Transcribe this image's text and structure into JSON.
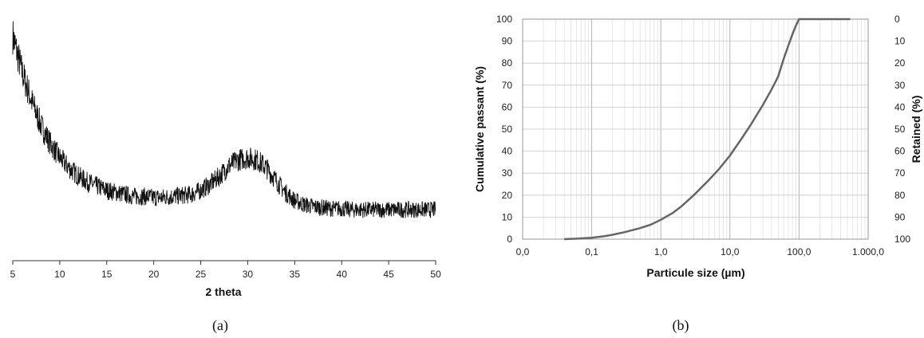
{
  "chart_data": [
    {
      "type": "line",
      "caption": "(a)",
      "xlabel": "2 theta",
      "ylabel": "",
      "xlim": [
        5,
        50
      ],
      "x_ticks": [
        "5",
        "10",
        "15",
        "20",
        "25",
        "30",
        "35",
        "40",
        "45",
        "50"
      ],
      "grid": false,
      "y_ticks_shown": false,
      "line_color": "#111111",
      "series": [
        {
          "x": [
            5,
            6,
            7,
            8,
            9,
            10,
            11,
            12,
            13,
            14,
            15,
            16,
            17,
            18,
            19,
            20,
            21,
            22,
            23,
            24,
            25,
            26,
            27,
            28,
            29,
            30,
            31,
            32,
            33,
            34,
            35,
            36,
            37,
            38,
            39,
            40,
            41,
            42,
            43,
            44,
            45,
            46,
            47,
            48,
            49,
            50
          ],
          "y": [
            100,
            82,
            68,
            56,
            47,
            40,
            35,
            31,
            28,
            26,
            24,
            23,
            22,
            21,
            21,
            20.5,
            20.5,
            21,
            21.5,
            22,
            24,
            27,
            31,
            36,
            39,
            40,
            39,
            35,
            29,
            23,
            19,
            17,
            16,
            15.5,
            15,
            15,
            14.5,
            14.5,
            14.5,
            14.5,
            14.5,
            14.5,
            14.5,
            14.5,
            14.5,
            14.5
          ]
        }
      ]
    },
    {
      "type": "line",
      "caption": "(b)",
      "xlabel": "Particule size (µm)",
      "ylabel": "Cumulative passant (%)",
      "ylabel_right": "Retained (%)",
      "x_scale": "log",
      "xlim": [
        0.01,
        1000
      ],
      "ylim": [
        0,
        100
      ],
      "x_ticks": [
        "0,0",
        "0,1",
        "1,0",
        "10,0",
        "100,0",
        "1.000,0"
      ],
      "y_ticks": [
        "0",
        "10",
        "20",
        "30",
        "40",
        "50",
        "60",
        "70",
        "80",
        "90",
        "100"
      ],
      "y_ticks_right": [
        "100",
        "90",
        "80",
        "70",
        "60",
        "50",
        "40",
        "30",
        "20",
        "10",
        "0"
      ],
      "grid": true,
      "line_color": "#666666",
      "series": [
        {
          "x": [
            0.04,
            0.06,
            0.1,
            0.15,
            0.2,
            0.3,
            0.5,
            0.7,
            1.0,
            1.5,
            2,
            3,
            5,
            7,
            10,
            15,
            20,
            30,
            40,
            50,
            60,
            70,
            80,
            90,
            100,
            150,
            300,
            550
          ],
          "y": [
            0,
            0.2,
            0.6,
            1.3,
            2,
            3.2,
            5,
            6.5,
            8.8,
            12,
            15,
            20,
            27,
            32,
            38,
            46,
            52,
            61,
            68,
            74,
            82,
            88,
            93,
            97,
            100,
            100,
            100,
            100
          ]
        }
      ]
    }
  ]
}
